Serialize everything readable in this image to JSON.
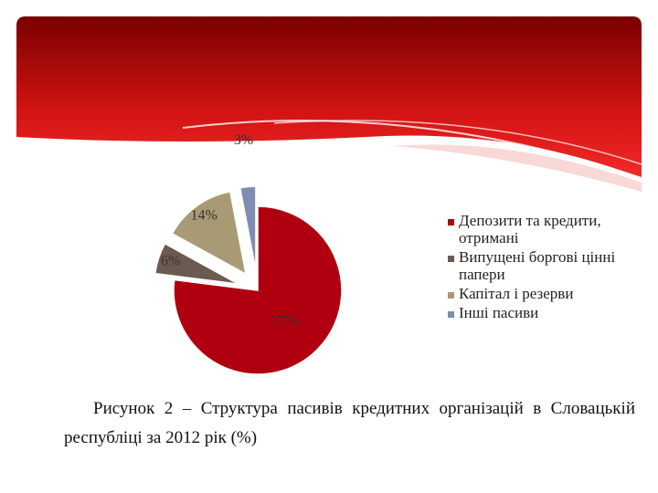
{
  "chart_data": {
    "type": "pie",
    "categories": [
      "Депозити та кредити, отримані",
      "Випущені боргові цінні папери",
      "Капітал і резерви",
      "Інші пасиви"
    ],
    "values": [
      77,
      6,
      14,
      3
    ],
    "value_labels": [
      "77%",
      "6%",
      "14%",
      "3%"
    ],
    "colors": [
      "#b00010",
      "#6b5a50",
      "#a89a74",
      "#7f8db3"
    ],
    "legend": "right",
    "caption": "Рисунок 2 – Структура пасивів кредитних організацій в Словацькій республіці за 2012 рік (%)"
  }
}
